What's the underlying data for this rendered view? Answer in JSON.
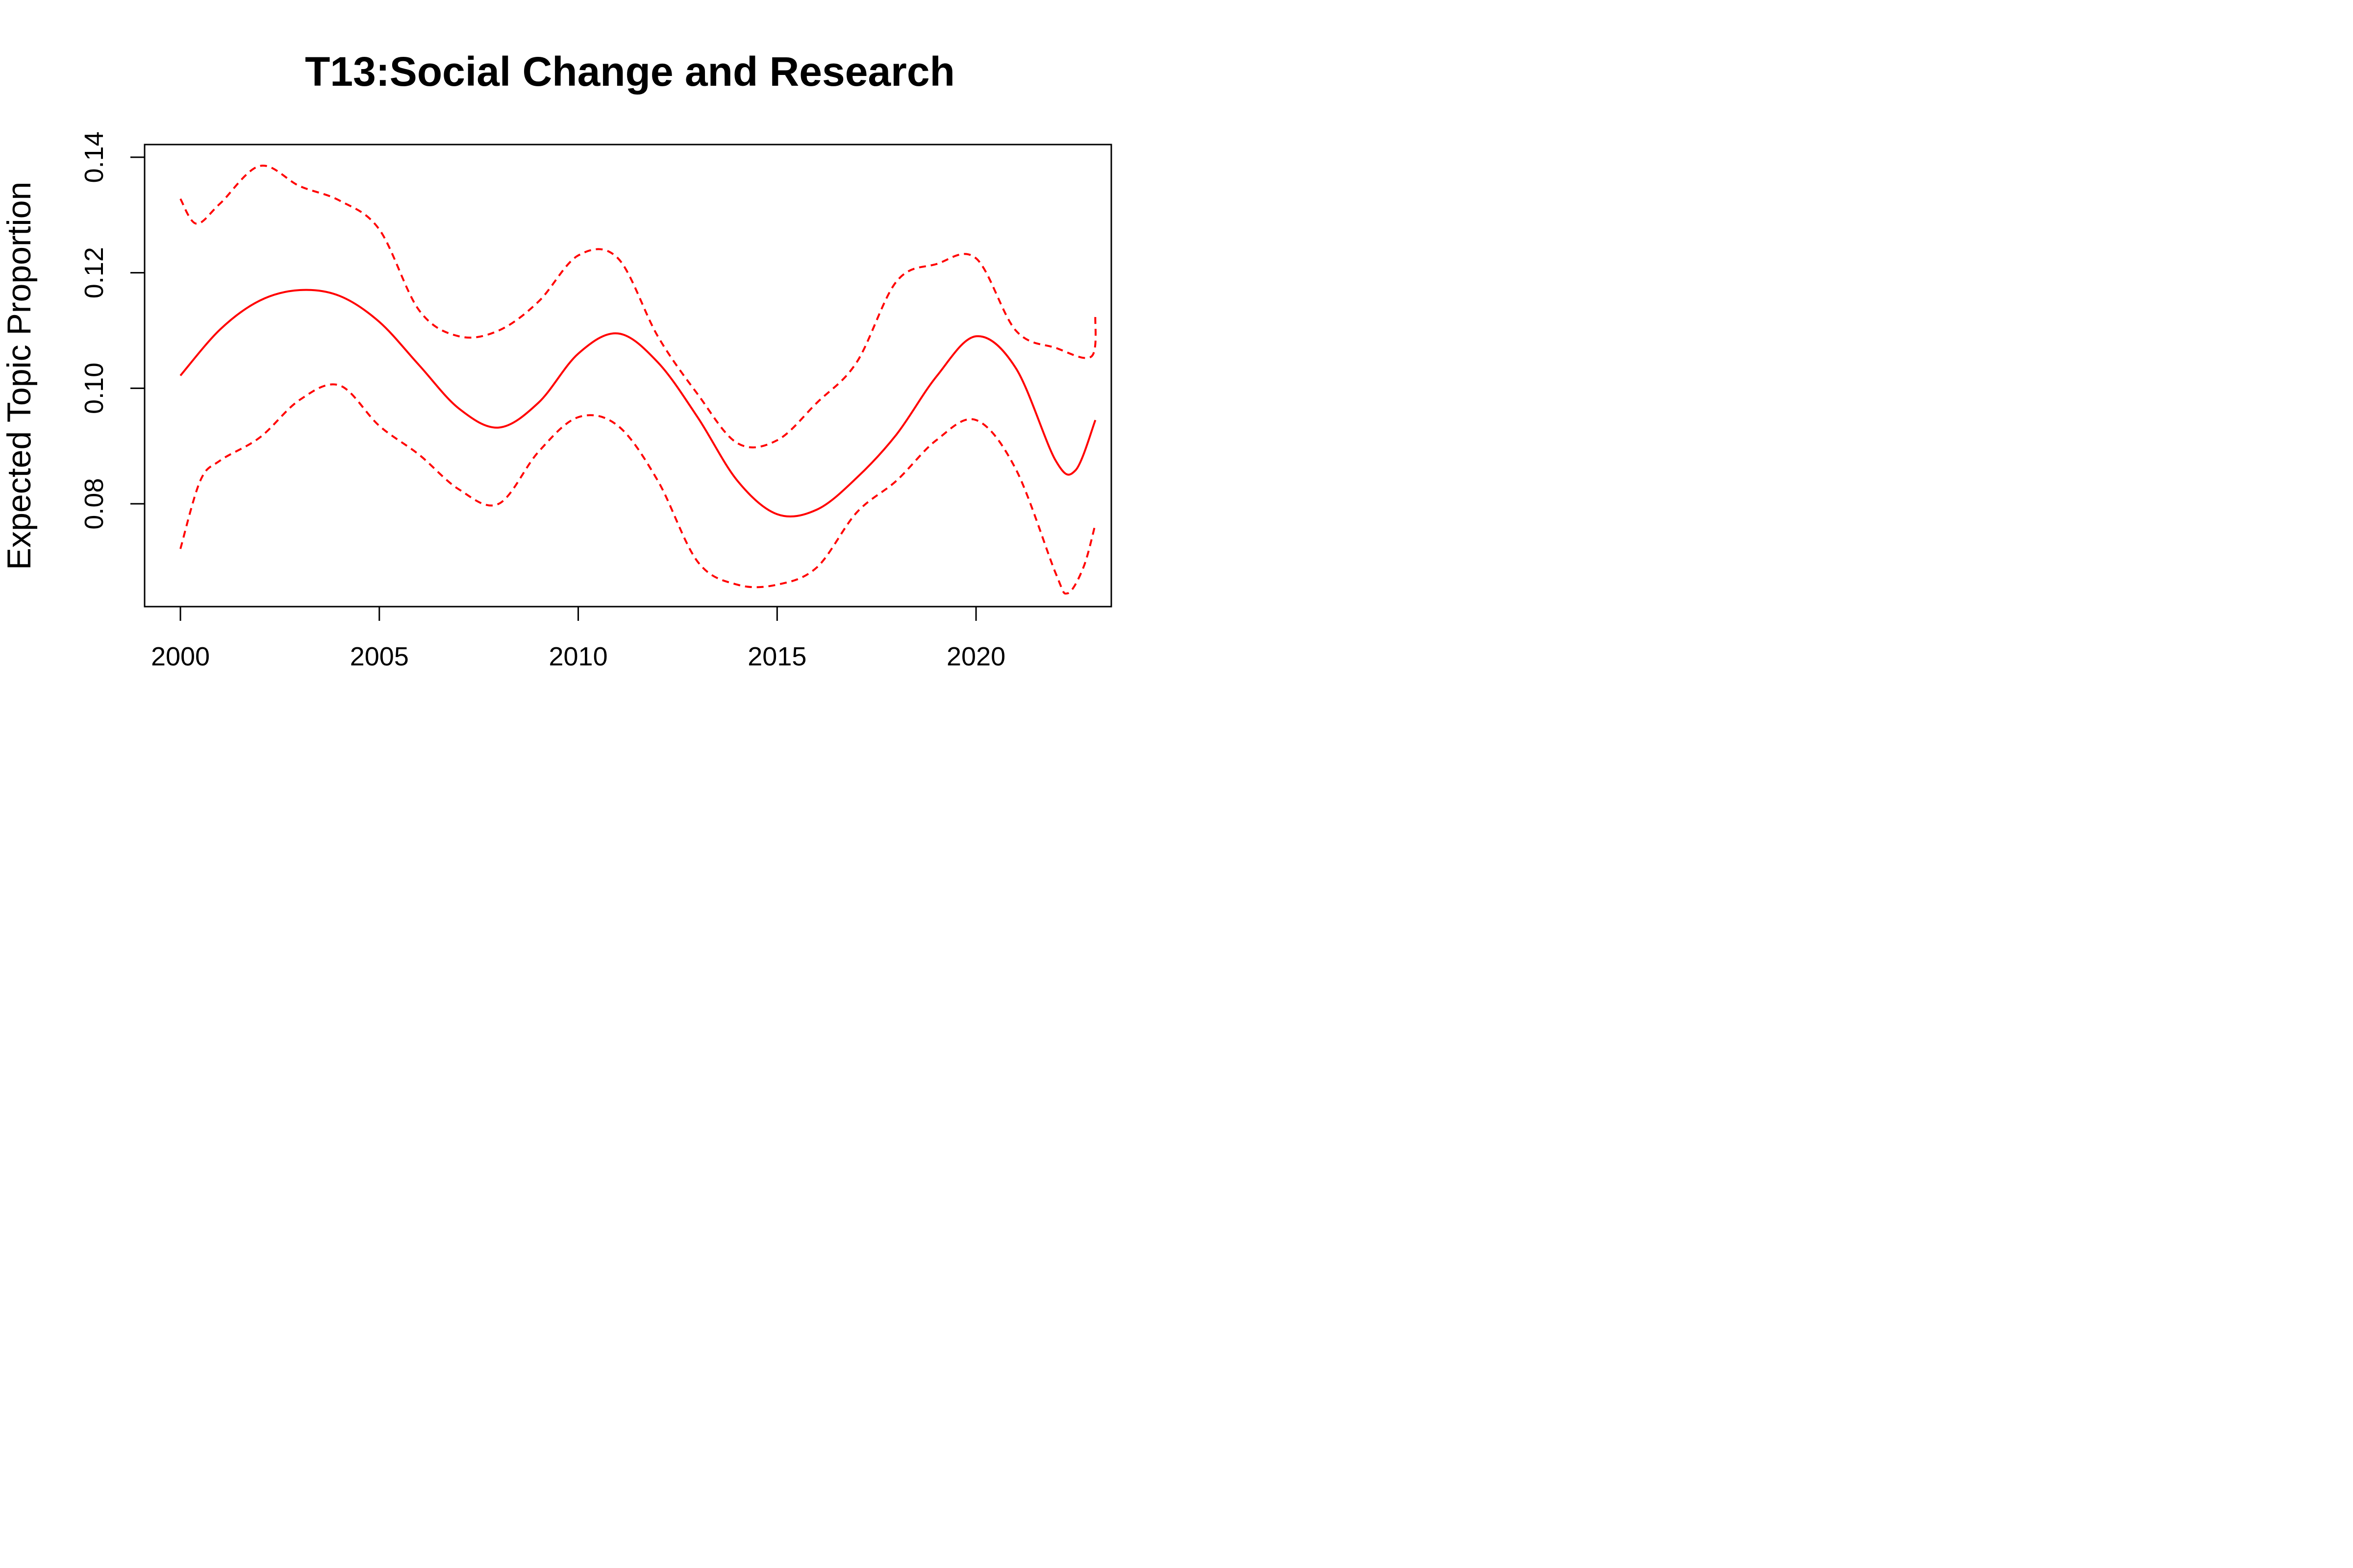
{
  "chart_data": {
    "type": "line",
    "title": "T13:Social Change and Research",
    "xlabel": "",
    "ylabel": "Expected Topic Proportion",
    "xlim": [
      1999.1,
      2023.4
    ],
    "ylim": [
      0.0622,
      0.1422
    ],
    "x_ticks": [
      2000,
      2005,
      2010,
      2015,
      2020
    ],
    "y_ticks": [
      0.08,
      0.1,
      0.12,
      0.14
    ],
    "y_tick_labels": [
      "0.08",
      "0.10",
      "0.12",
      "0.14"
    ],
    "grid": false,
    "legend": "none",
    "colors": {
      "line": "#ff0000",
      "axis": "#000000"
    },
    "series": [
      {
        "name": "estimate",
        "style": "solid",
        "x": [
          2000,
          2001,
          2002,
          2003,
          2004,
          2005,
          2006,
          2007,
          2008,
          2009,
          2010,
          2011,
          2012,
          2013,
          2014,
          2015,
          2016,
          2017,
          2018,
          2019,
          2020,
          2021,
          2022,
          2022.5,
          2023
        ],
        "y": [
          0.1022,
          0.1102,
          0.1152,
          0.117,
          0.116,
          0.1115,
          0.104,
          0.0965,
          0.0932,
          0.0975,
          0.106,
          0.1095,
          0.1045,
          0.095,
          0.084,
          0.0782,
          0.079,
          0.0845,
          0.092,
          0.102,
          0.109,
          0.1035,
          0.0875,
          0.0858,
          0.0945
        ]
      },
      {
        "name": "upper 95% CI",
        "style": "dashed",
        "x": [
          2000,
          2000.4,
          2001,
          2002,
          2003,
          2004,
          2005,
          2006,
          2007,
          2008,
          2009,
          2010,
          2011,
          2012,
          2013,
          2014,
          2015,
          2016,
          2017,
          2018,
          2019,
          2020,
          2021,
          2022,
          2022.9,
          2023
        ],
        "y": [
          0.1328,
          0.1285,
          0.132,
          0.1385,
          0.135,
          0.1325,
          0.1275,
          0.1135,
          0.109,
          0.11,
          0.115,
          0.123,
          0.1225,
          0.109,
          0.099,
          0.0905,
          0.091,
          0.0975,
          0.1045,
          0.1185,
          0.1215,
          0.1225,
          0.11,
          0.107,
          0.1055,
          0.1125
        ]
      },
      {
        "name": "lower 95% CI",
        "style": "dashed",
        "x": [
          2000,
          2000.5,
          2001,
          2002,
          2003,
          2004,
          2005,
          2006,
          2007,
          2008,
          2009,
          2010,
          2011,
          2012,
          2013,
          2014,
          2015,
          2016,
          2017,
          2018,
          2019,
          2020,
          2021,
          2022,
          2022.3,
          2022.7,
          2023
        ],
        "y": [
          0.0722,
          0.084,
          0.0875,
          0.0915,
          0.098,
          0.1005,
          0.0935,
          0.0885,
          0.0825,
          0.08,
          0.089,
          0.095,
          0.0935,
          0.084,
          0.07,
          0.066,
          0.066,
          0.069,
          0.0785,
          0.084,
          0.091,
          0.0945,
          0.086,
          0.068,
          0.0645,
          0.069,
          0.0765
        ]
      }
    ]
  }
}
